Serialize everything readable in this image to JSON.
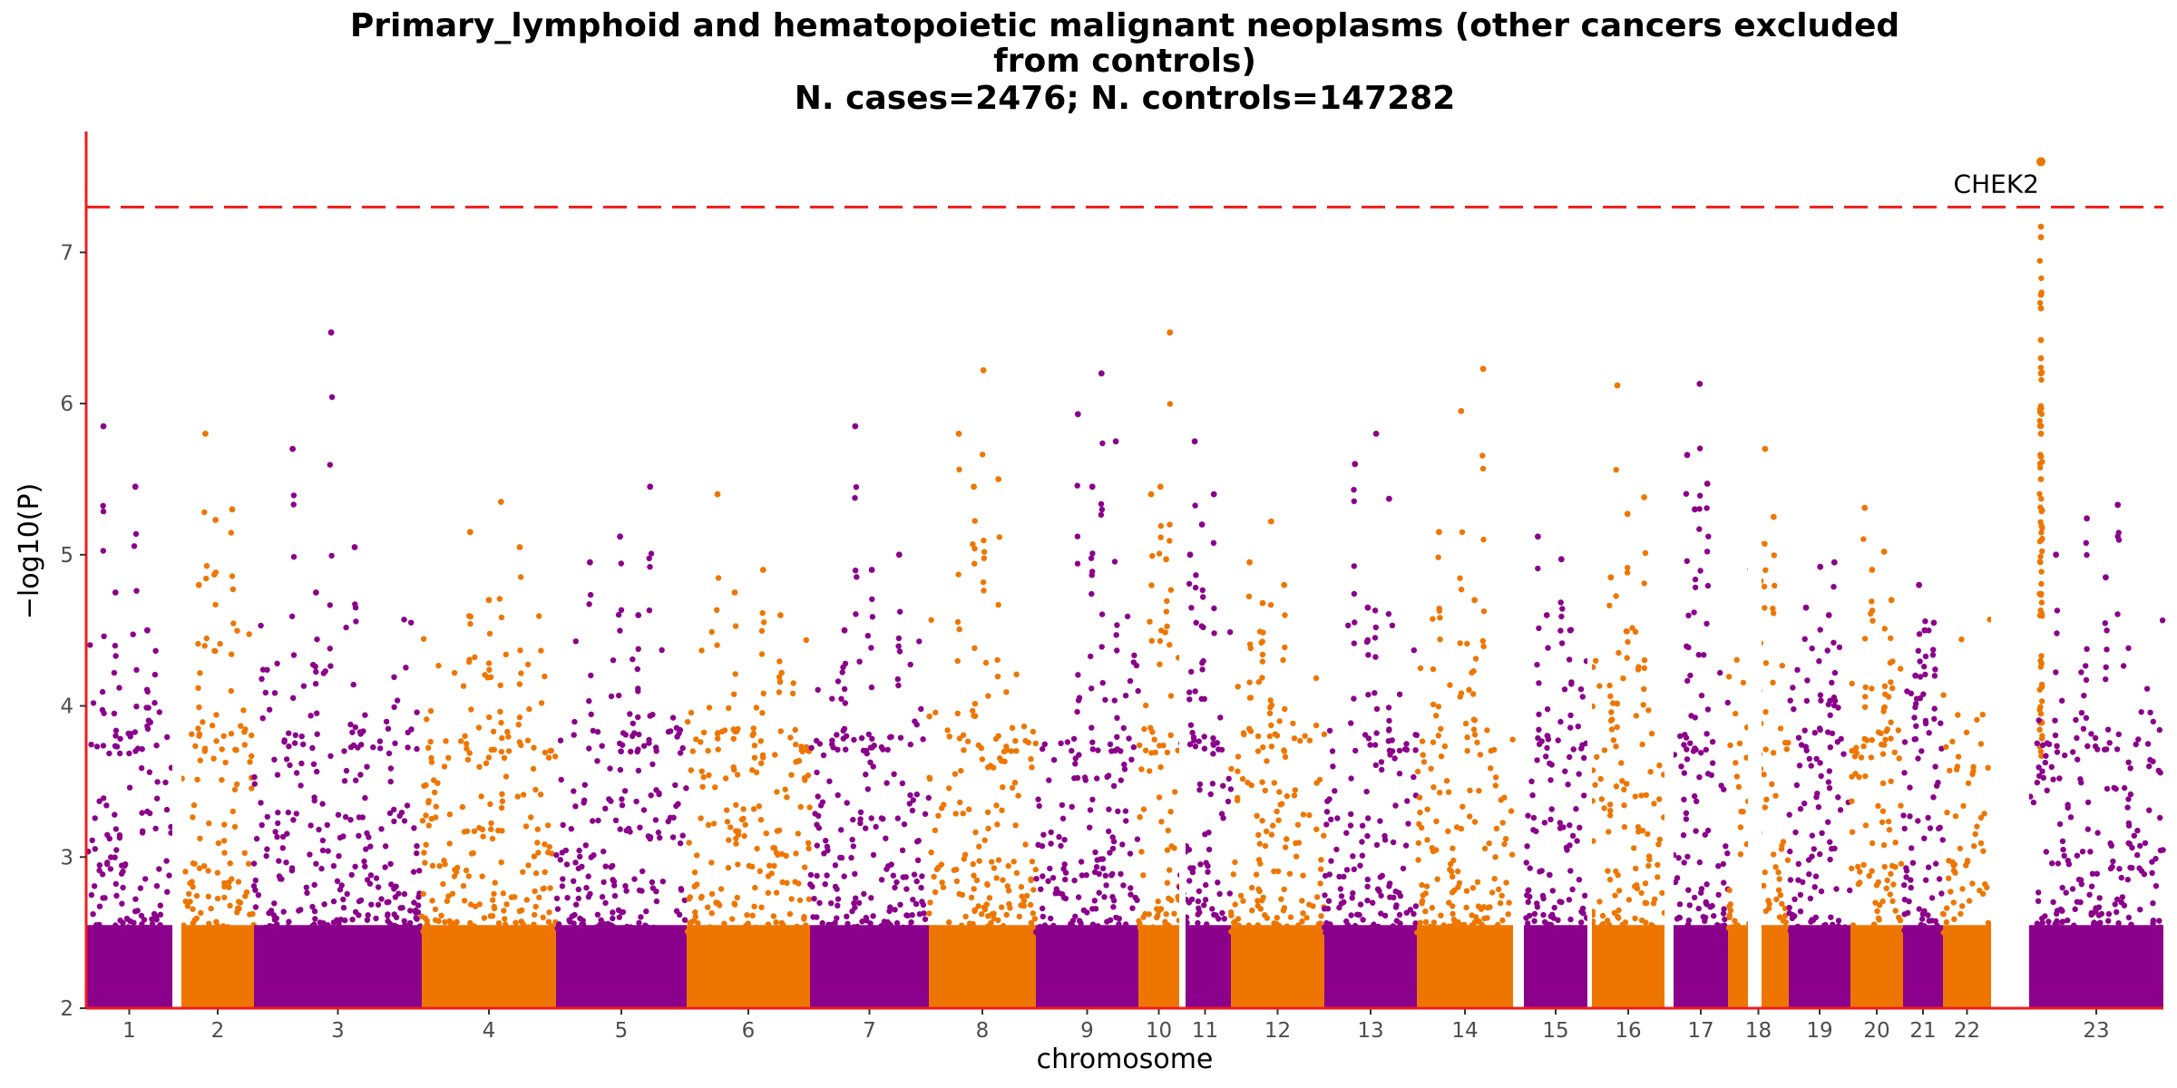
{
  "chart_data": {
    "type": "scatter",
    "subtype": "manhattan",
    "title_lines": [
      "Primary_lymphoid and hematopoietic malignant neoplasms (other cancers excluded",
      "from controls)",
      "N. cases=2476; N. controls=147282"
    ],
    "xlabel": "chromosome",
    "ylabel": "−log10(P)",
    "ylim": [
      2,
      7.8
    ],
    "y_ticks": [
      2,
      3,
      4,
      5,
      6,
      7
    ],
    "significance_line": 7.3,
    "grid": false,
    "colors": {
      "odd": "#8B008B",
      "even": "#EE7600",
      "axis": "#EE1C1C",
      "threshold": "#EE1C1C"
    },
    "chromosomes": [
      {
        "label": "1",
        "max": 5.85,
        "peaks": [
          5.85,
          5.45,
          4.75,
          4.5
        ]
      },
      {
        "label": "2",
        "max": 5.8,
        "peaks": [
          5.8,
          5.3,
          5.23,
          4.8
        ]
      },
      {
        "label": "3",
        "max": 6.47,
        "peaks": [
          6.47,
          5.7,
          5.05,
          4.75
        ]
      },
      {
        "label": "4",
        "max": 5.35,
        "peaks": [
          5.35,
          5.15,
          5.05,
          4.7
        ]
      },
      {
        "label": "5",
        "max": 5.45,
        "peaks": [
          5.45,
          5.12,
          4.95,
          4.6
        ]
      },
      {
        "label": "6",
        "max": 5.4,
        "peaks": [
          5.4,
          4.9,
          4.75,
          4.6
        ]
      },
      {
        "label": "7",
        "max": 5.85,
        "peaks": [
          5.85,
          5.0,
          4.9,
          4.5
        ]
      },
      {
        "label": "8",
        "max": 6.22,
        "peaks": [
          6.22,
          5.8,
          5.5,
          5.45
        ]
      },
      {
        "label": "9",
        "max": 6.2,
        "peaks": [
          6.2,
          5.93,
          5.75,
          5.45
        ]
      },
      {
        "label": "10",
        "max": 6.47,
        "peaks": [
          6.47,
          5.45,
          5.4,
          4.97
        ]
      },
      {
        "label": "11",
        "max": 5.75,
        "peaks": [
          5.75,
          5.4,
          5.2,
          5.0
        ]
      },
      {
        "label": "12",
        "max": 5.22,
        "peaks": [
          5.22,
          4.95,
          4.8,
          4.68
        ]
      },
      {
        "label": "13",
        "max": 5.8,
        "peaks": [
          5.8,
          5.6,
          5.37,
          4.65
        ]
      },
      {
        "label": "14",
        "max": 6.23,
        "peaks": [
          6.23,
          5.95,
          5.15,
          4.7
        ]
      },
      {
        "label": "15",
        "max": 5.12,
        "peaks": [
          5.12,
          4.97,
          4.6,
          4.5
        ]
      },
      {
        "label": "16",
        "max": 6.12,
        "peaks": [
          6.12,
          5.38,
          5.27,
          4.85
        ]
      },
      {
        "label": "17",
        "max": 6.13,
        "peaks": [
          6.13,
          5.66,
          5.47,
          5.3
        ]
      },
      {
        "label": "18",
        "max": 5.7,
        "peaks": [
          5.7,
          5.38,
          5.25,
          5.08
        ]
      },
      {
        "label": "19",
        "max": 4.95,
        "peaks": [
          4.95,
          4.92,
          4.65,
          4.6
        ]
      },
      {
        "label": "20",
        "max": 5.31,
        "peaks": [
          5.31,
          5.02,
          4.9,
          4.7
        ]
      },
      {
        "label": "21",
        "max": 4.8,
        "peaks": [
          4.8,
          4.55,
          4.5,
          4.2
        ]
      },
      {
        "label": "22",
        "max": 7.6,
        "peaks": [
          7.6,
          7.17,
          7.1,
          6.72,
          6.63,
          6.42,
          6.3,
          6.2,
          5.8,
          5.65,
          5.5
        ]
      },
      {
        "label": "23",
        "max": 5.33,
        "peaks": [
          5.33,
          5.24,
          5.0,
          4.85
        ]
      }
    ],
    "annotations": [
      {
        "text": "CHEK2",
        "chromosome": "22",
        "value": 7.6
      }
    ]
  }
}
